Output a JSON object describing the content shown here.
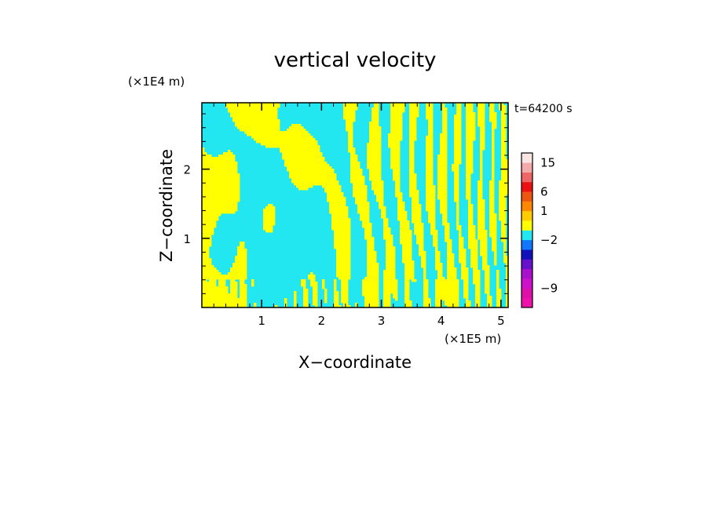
{
  "chart_data": {
    "type": "heatmap",
    "title": "vertical velocity",
    "xlabel": "X−coordinate",
    "ylabel": "Z−coordinate",
    "x_unit": "(×1E5 m)",
    "y_unit": "(×1E4 m)",
    "time_label": "t=64200 s",
    "xlim": [
      0,
      5.12
    ],
    "ylim": [
      0,
      2.96
    ],
    "x_ticks": [
      {
        "value": 1,
        "label": "1"
      },
      {
        "value": 2,
        "label": "2"
      },
      {
        "value": 3,
        "label": "3"
      },
      {
        "value": 4,
        "label": "4"
      },
      {
        "value": 5,
        "label": "5"
      }
    ],
    "y_ticks": [
      {
        "value": 1,
        "label": "1"
      },
      {
        "value": 2,
        "label": "2"
      }
    ],
    "field_colors": {
      "negative": "#22e6f0",
      "positive": "#ffff00"
    },
    "colorbar": {
      "levels": [
        {
          "color": "#ee11aa"
        },
        {
          "color": "#dd11aa"
        },
        {
          "color": "#cc11cc"
        },
        {
          "color": "#aa11cc"
        },
        {
          "color": "#6611cc"
        },
        {
          "color": "#1111bb"
        },
        {
          "color": "#1177ff"
        },
        {
          "color": "#22e6f0"
        },
        {
          "color": "#ffff00"
        },
        {
          "color": "#ffcc00"
        },
        {
          "color": "#ff8800"
        },
        {
          "color": "#ee5511"
        },
        {
          "color": "#ee1111"
        },
        {
          "color": "#ee6666"
        },
        {
          "color": "#f4aaaa"
        },
        {
          "color": "#fbe4e4"
        }
      ],
      "labels": [
        {
          "label": "15",
          "level_index": 14
        },
        {
          "label": "6",
          "level_index": 11
        },
        {
          "label": "1",
          "level_index": 9
        },
        {
          "label": "−2",
          "level_index": 6
        },
        {
          "label": "−9",
          "level_index": 1
        }
      ]
    }
  }
}
